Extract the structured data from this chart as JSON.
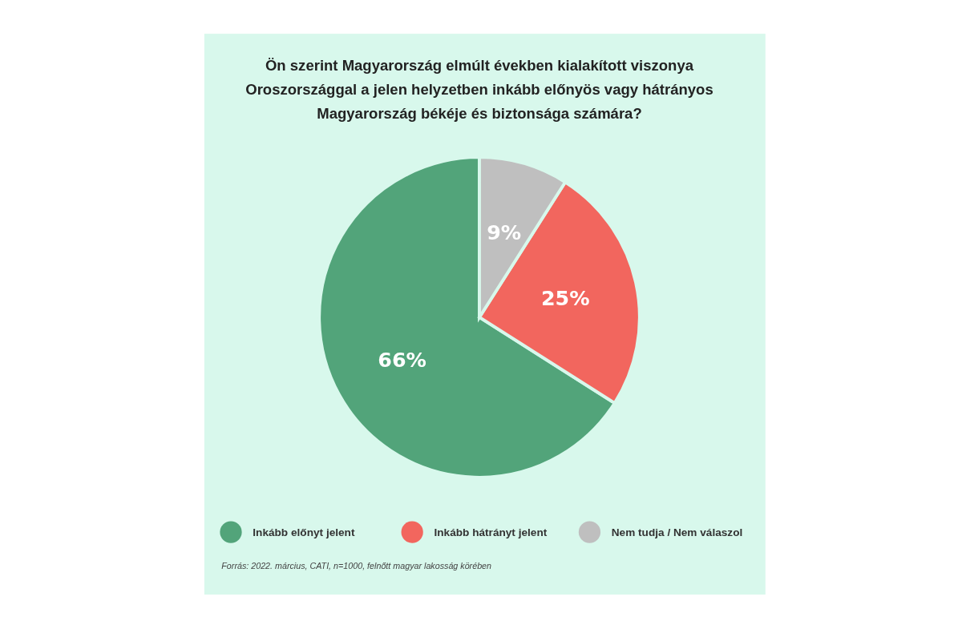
{
  "chart_data": {
    "type": "pie",
    "title": "Ön szerint Magyarország elmúlt években kialakított viszonya Oroszországgal a jelen helyzetben inkább előnyös vagy hátrányos Magyarország békéje és biztonsága számára?",
    "categories": [
      "Inkább előnyt jelent",
      "Inkább hátrányt jelent",
      "Nem tudja / Nem válaszol"
    ],
    "values": [
      66,
      25,
      9
    ],
    "colors": [
      "#52a47a",
      "#f2665e",
      "#bfbfbf"
    ],
    "value_labels": [
      "66%",
      "25%",
      "9%"
    ],
    "legend": "bottom",
    "annotations": [
      "Forrás: 2022. március, CATI, n=1000, felnőtt magyar lakosság körében"
    ]
  }
}
